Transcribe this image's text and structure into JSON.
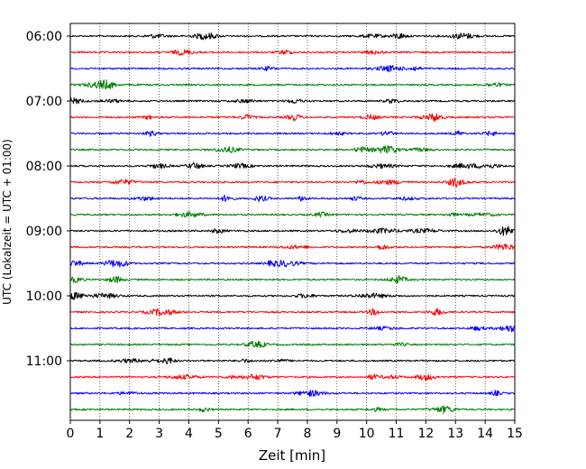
{
  "chart_data": {
    "type": "line",
    "subtype": "helicorder",
    "xlabel": "Zeit  [min]",
    "ylabel": "UTC (Lokalzeit = UTC + 01:00)",
    "xlim": [
      0,
      15
    ],
    "x_ticks": [
      "0",
      "1",
      "2",
      "3",
      "4",
      "5",
      "6",
      "7",
      "8",
      "9",
      "10",
      "11",
      "12",
      "13",
      "14",
      "15"
    ],
    "y_ticks": [
      {
        "label": "06:00",
        "trace": 0
      },
      {
        "label": "07:00",
        "trace": 4
      },
      {
        "label": "08:00",
        "trace": 8
      },
      {
        "label": "09:00",
        "trace": 12
      },
      {
        "label": "10:00",
        "trace": 16
      },
      {
        "label": "11:00",
        "trace": 20
      }
    ],
    "trace_minutes": 15,
    "grid": "vertical dotted at each minute",
    "trace_colors": [
      "#000000",
      "#ff0000",
      "#0000ff",
      "#008000"
    ],
    "traces": [
      {
        "start": "06:00",
        "color": "#000000"
      },
      {
        "start": "06:15",
        "color": "#ff0000"
      },
      {
        "start": "06:30",
        "color": "#0000ff"
      },
      {
        "start": "06:45",
        "color": "#008000"
      },
      {
        "start": "07:00",
        "color": "#000000"
      },
      {
        "start": "07:15",
        "color": "#ff0000"
      },
      {
        "start": "07:30",
        "color": "#0000ff"
      },
      {
        "start": "07:45",
        "color": "#008000"
      },
      {
        "start": "08:00",
        "color": "#000000"
      },
      {
        "start": "08:15",
        "color": "#ff0000"
      },
      {
        "start": "08:30",
        "color": "#0000ff"
      },
      {
        "start": "08:45",
        "color": "#008000"
      },
      {
        "start": "09:00",
        "color": "#000000"
      },
      {
        "start": "09:15",
        "color": "#ff0000"
      },
      {
        "start": "09:30",
        "color": "#0000ff"
      },
      {
        "start": "09:45",
        "color": "#008000"
      },
      {
        "start": "10:00",
        "color": "#000000"
      },
      {
        "start": "10:15",
        "color": "#ff0000"
      },
      {
        "start": "10:30",
        "color": "#0000ff"
      },
      {
        "start": "10:45",
        "color": "#008000"
      },
      {
        "start": "11:00",
        "color": "#000000"
      },
      {
        "start": "11:15",
        "color": "#ff0000"
      },
      {
        "start": "11:30",
        "color": "#0000ff"
      },
      {
        "start": "11:45",
        "color": "#008000"
      }
    ]
  }
}
